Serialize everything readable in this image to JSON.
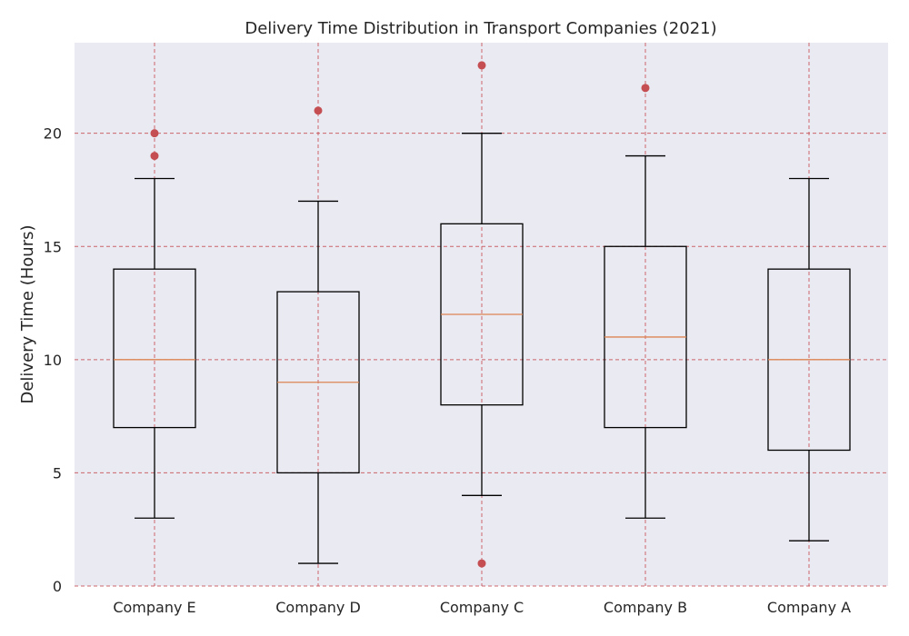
{
  "chart_data": {
    "type": "box",
    "title": "Delivery Time Distribution in Transport Companies (2021)",
    "xlabel": "",
    "ylabel": "Delivery Time (Hours)",
    "ylim": [
      0,
      24
    ],
    "yticks": [
      "0",
      "5",
      "10",
      "15",
      "20"
    ],
    "grid": true,
    "categories": [
      "Company E",
      "Company D",
      "Company C",
      "Company B",
      "Company A"
    ],
    "boxes": [
      {
        "whisker_low": 3,
        "q1": 7,
        "median": 10,
        "q3": 14,
        "whisker_high": 18,
        "outliers": [
          19,
          20
        ]
      },
      {
        "whisker_low": 1,
        "q1": 5,
        "median": 9,
        "q3": 13,
        "whisker_high": 17,
        "outliers": [
          21
        ]
      },
      {
        "whisker_low": 4,
        "q1": 8,
        "median": 12,
        "q3": 16,
        "whisker_high": 20,
        "outliers": [
          1,
          23
        ]
      },
      {
        "whisker_low": 3,
        "q1": 7,
        "median": 11,
        "q3": 15,
        "whisker_high": 19,
        "outliers": [
          22
        ]
      },
      {
        "whisker_low": 2,
        "q1": 6,
        "median": 10,
        "q3": 14,
        "whisker_high": 18,
        "outliers": []
      }
    ],
    "colors": {
      "plot_background": "#eaeaf2",
      "grid": "#c44e52",
      "box": "#000000",
      "median": "#dd8452",
      "outlier": "#c44e52"
    }
  }
}
